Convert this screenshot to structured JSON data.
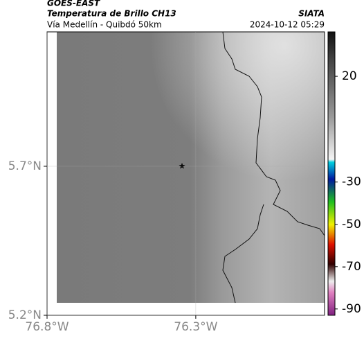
{
  "header": {
    "title": "GOES-EAST",
    "subtitle": "Temperatura de Brillo CH13",
    "location": "Vía Medellín - Quibdó 50km",
    "source": "SIATA",
    "datetime": "2024-10-12 05:29"
  },
  "map": {
    "xlim": [
      -76.8,
      -75.867
    ],
    "ylim": [
      5.2,
      6.151
    ],
    "xticks": [
      {
        "value": -76.8,
        "label": "76.8°W"
      },
      {
        "value": -76.3,
        "label": "76.3°W"
      }
    ],
    "yticks": [
      {
        "value": 5.7,
        "label": "5.7°N"
      },
      {
        "value": 5.2,
        "label": "5.2°N"
      }
    ]
  },
  "colorbar": {
    "lim": [
      -93,
      41
    ],
    "ticks": [
      20,
      -30,
      -50,
      -70,
      -90
    ]
  }
}
